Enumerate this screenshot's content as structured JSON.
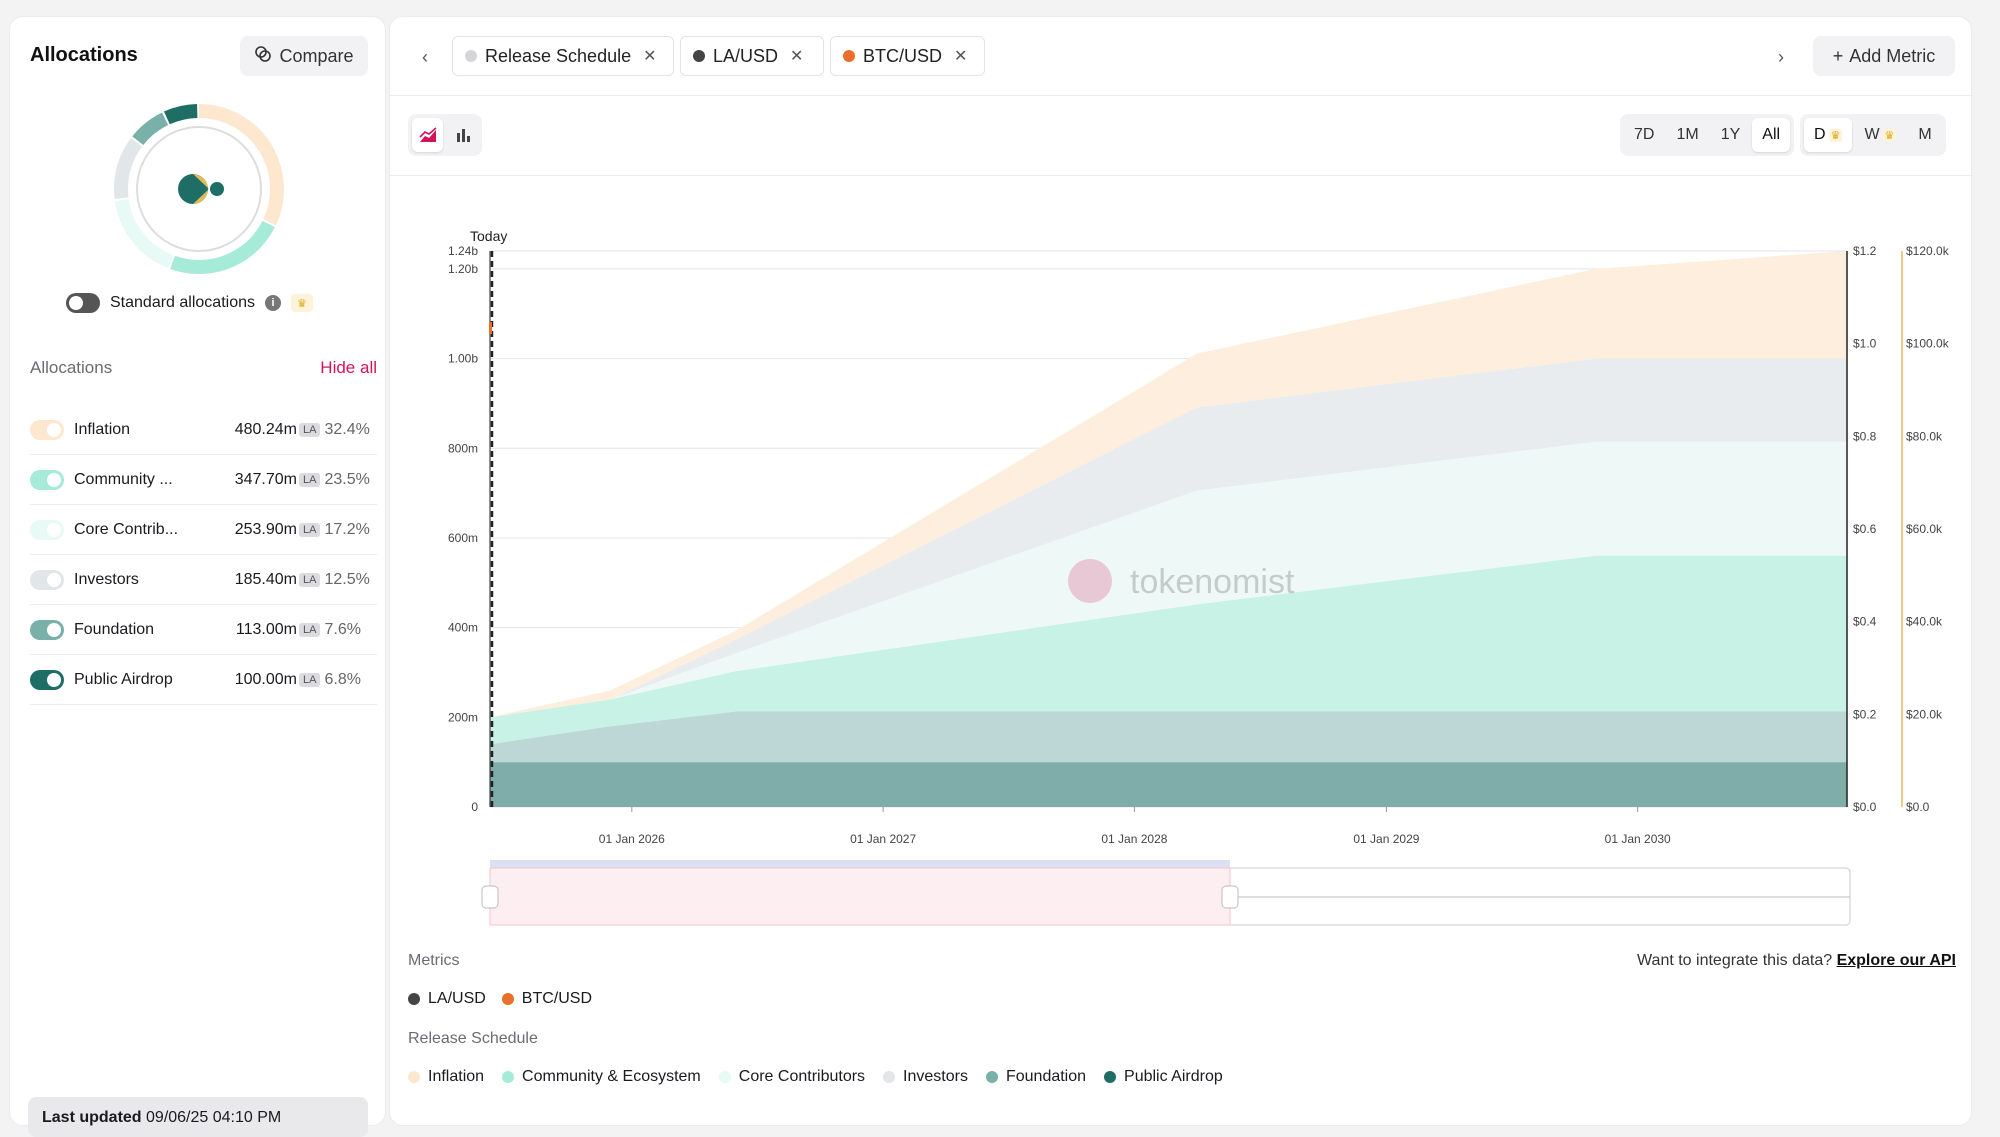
{
  "sidebar": {
    "title": "Allocations",
    "compare_label": "Compare",
    "standard_allocations_label": "Standard allocations",
    "allocations_header": "Allocations",
    "hide_all_label": "Hide all",
    "items": [
      {
        "name": "Inflation",
        "amount": "480.24m",
        "unit": "LA",
        "percent": "32.4%",
        "color": "#fde8cf"
      },
      {
        "name": "Community ...",
        "amount": "347.70m",
        "unit": "LA",
        "percent": "23.5%",
        "color": "#a6ebd8"
      },
      {
        "name": "Core Contrib...",
        "amount": "253.90m",
        "unit": "LA",
        "percent": "17.2%",
        "color": "#e8faf5"
      },
      {
        "name": "Investors",
        "amount": "185.40m",
        "unit": "LA",
        "percent": "12.5%",
        "color": "#e1e6e8"
      },
      {
        "name": "Foundation",
        "amount": "113.00m",
        "unit": "LA",
        "percent": "7.6%",
        "color": "#79b0aa"
      },
      {
        "name": "Public Airdrop",
        "amount": "100.00m",
        "unit": "LA",
        "percent": "6.8%",
        "color": "#1f6e66"
      }
    ],
    "last_updated_label": "Last updated",
    "last_updated_value": "09/06/25 04:10 PM"
  },
  "tabs": [
    {
      "label": "Release Schedule",
      "color": "#d5d5d8"
    },
    {
      "label": "LA/USD",
      "color": "#444444"
    },
    {
      "label": "BTC/USD",
      "color": "#e8702a"
    }
  ],
  "add_metric_label": "Add Metric",
  "time_ranges": [
    "7D",
    "1M",
    "1Y",
    "All"
  ],
  "active_range": "All",
  "granularity": [
    "D",
    "W",
    "M"
  ],
  "watermark": "tokenomist",
  "chart_data": {
    "type": "area",
    "stacked": true,
    "today_label": "Today",
    "x_dates": [
      "2025-06-09",
      "2025-12-01",
      "2026-06-01",
      "2028-04-01",
      "2029-11-01",
      "2030-11-01"
    ],
    "series": [
      {
        "name": "Public Airdrop",
        "color": "#7fada9",
        "values": [
          100,
          100,
          100,
          100,
          100,
          100
        ]
      },
      {
        "name": "Foundation",
        "color": "#bcd7d5",
        "values": [
          40,
          80,
          113,
          113,
          113,
          113
        ]
      },
      {
        "name": "Community & Ecosystem",
        "color": "#c8f2e6",
        "values": [
          60,
          60,
          90,
          239,
          347.7,
          347.7
        ]
      },
      {
        "name": "Core Contributors",
        "color": "#eef9f7",
        "values": [
          0,
          0,
          40,
          253.9,
          253.9,
          253.9
        ]
      },
      {
        "name": "Investors",
        "color": "#e8ecee",
        "values": [
          0,
          0,
          30,
          185.4,
          185.4,
          185.4
        ]
      },
      {
        "name": "Inflation",
        "color": "#fdeedd",
        "values": [
          0,
          20,
          20,
          120,
          200,
          240
        ]
      }
    ],
    "y_left": {
      "ticks": [
        0,
        200,
        400,
        600,
        800,
        1000,
        1200,
        1240
      ],
      "tick_labels": [
        "0",
        "200m",
        "400m",
        "600m",
        "800m",
        "1.00b",
        "1.20b",
        "1.24b"
      ],
      "max": 1240
    },
    "y_right1": {
      "ticks": [
        "$0.0",
        "$0.2",
        "$0.4",
        "$0.6",
        "$0.8",
        "$1.0",
        "$1.2"
      ],
      "max": 1.2
    },
    "y_right2": {
      "ticks": [
        "$0.0",
        "$20.0k",
        "$40.0k",
        "$60.0k",
        "$80.0k",
        "$100.0k",
        "$120.0k"
      ],
      "max": 120000
    },
    "x_ticks": [
      {
        "date": "2026-01-01",
        "label": "01 Jan 2026"
      },
      {
        "date": "2027-01-01",
        "label": "01 Jan 2027"
      },
      {
        "date": "2028-01-01",
        "label": "01 Jan 2028"
      },
      {
        "date": "2029-01-01",
        "label": "01 Jan 2029"
      },
      {
        "date": "2030-01-01",
        "label": "01 Jan 2030"
      }
    ],
    "grid": true
  },
  "legend": {
    "metrics_label": "Metrics",
    "integrate_text": "Want to integrate this data?",
    "api_link": "Explore our API",
    "metrics": [
      {
        "name": "LA/USD",
        "color": "#444444"
      },
      {
        "name": "BTC/USD",
        "color": "#e8702a"
      }
    ],
    "release_schedule_label": "Release Schedule",
    "release_items": [
      {
        "name": "Inflation",
        "color": "#fde8cf"
      },
      {
        "name": "Community & Ecosystem",
        "color": "#a6ebd8"
      },
      {
        "name": "Core Contributors",
        "color": "#e8faf5"
      },
      {
        "name": "Investors",
        "color": "#e1e6e8"
      },
      {
        "name": "Foundation",
        "color": "#79b0aa"
      },
      {
        "name": "Public Airdrop",
        "color": "#1f6e66"
      }
    ]
  }
}
